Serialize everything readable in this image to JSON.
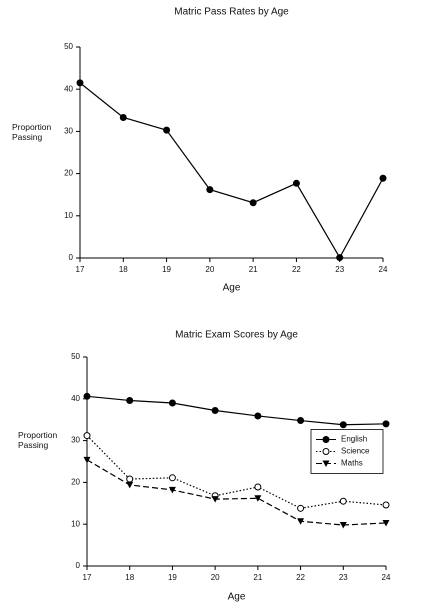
{
  "chart_data": [
    {
      "type": "line",
      "title": "Matric Pass Rates by Age",
      "xlabel": "Age",
      "ylabel": "Proportion Passing",
      "x": [
        17,
        18,
        19,
        20,
        21,
        22,
        23,
        24
      ],
      "series": [
        {
          "color": "#000000",
          "marker": "filled-circle",
          "linestyle": "solid",
          "values": [
            41.5,
            33.3,
            30.3,
            16.2,
            13.1,
            17.7,
            0.1,
            18.9
          ]
        }
      ],
      "xlim": [
        17,
        24
      ],
      "xticks": [
        17,
        18,
        19,
        20,
        21,
        22,
        23,
        24
      ],
      "ylim": [
        0,
        50
      ],
      "yticks": [
        0,
        10,
        20,
        30,
        40,
        50
      ]
    },
    {
      "type": "line",
      "title": "Matric Exam Scores by Age",
      "xlabel": "Age",
      "ylabel": "Proportion Passing",
      "x": [
        17,
        18,
        19,
        20,
        21,
        22,
        23,
        24
      ],
      "series": [
        {
          "name": "English",
          "color": "#000000",
          "marker": "filled-circle",
          "linestyle": "solid",
          "values": [
            40.6,
            39.6,
            39.0,
            37.2,
            35.9,
            34.8,
            33.8,
            34.0
          ]
        },
        {
          "name": "Science",
          "color": "#000000",
          "marker": "open-circle",
          "linestyle": "dotted",
          "values": [
            31.2,
            20.8,
            21.1,
            16.8,
            18.9,
            13.8,
            15.5,
            14.6
          ]
        },
        {
          "name": "Maths",
          "color": "#000000",
          "marker": "triangle-down",
          "linestyle": "dashed",
          "values": [
            25.4,
            19.4,
            18.2,
            16.0,
            16.2,
            10.7,
            9.8,
            10.3
          ]
        }
      ],
      "xlim": [
        17,
        24
      ],
      "xticks": [
        17,
        18,
        19,
        20,
        21,
        22,
        23,
        24
      ],
      "ylim": [
        0,
        50
      ],
      "yticks": [
        0,
        10,
        20,
        30,
        40,
        50
      ],
      "legend": "right"
    }
  ]
}
